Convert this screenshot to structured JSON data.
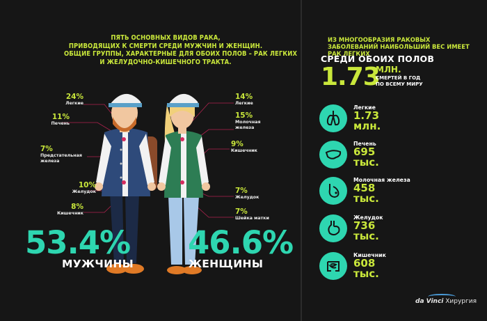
{
  "headline": [
    "ПЯТЬ ОСНОВНЫХ ВИДОВ РАКА,",
    "ПРИВОДЯЩИХ К СМЕРТИ СРЕДИ МУЖЧИН И ЖЕНЩИН.",
    "ОБЩИЕ ГРУППЫ, ХАРАКТЕРНЫЕ ДЛЯ ОБОИХ ПОЛОВ – РАК ЛЕГКИХ",
    "И ЖЕЛУДОЧНО-КИШЕЧНОГО ТРАКТА."
  ],
  "men": {
    "percent": "53.4%",
    "label": "МУЖЧИНЫ",
    "stats": [
      {
        "pct": "24%",
        "label": "Легкие"
      },
      {
        "pct": "11%",
        "label": "Печень"
      },
      {
        "pct": "7%",
        "label": "Предстательная железа"
      },
      {
        "pct": "10%",
        "label": "Желудок"
      },
      {
        "pct": "8%",
        "label": "Кишечник"
      }
    ]
  },
  "women": {
    "percent": "46.6%",
    "label": "ЖЕНЩИНЫ",
    "stats": [
      {
        "pct": "14%",
        "label": "Легкие"
      },
      {
        "pct": "15%",
        "label": "Молочная железа"
      },
      {
        "pct": "9%",
        "label": "Кишечник"
      },
      {
        "pct": "7%",
        "label": "Желудок"
      },
      {
        "pct": "7%",
        "label": "Шейка матки"
      }
    ]
  },
  "right": {
    "intro": "ИЗ МНОГООБРАЗИЯ РАКОВЫХ ЗАБОЛЕВАНИЙ НАИБОЛЬШИЙ ВЕС ИМЕЕТ РАК ЛЕГКИХ",
    "both_title": "СРЕДИ ОБОИХ ПОЛОВ",
    "total_number": "1.73",
    "total_unit": "МЛН.",
    "total_desc_1": "СМЕРТЕЙ В ГОД",
    "total_desc_2": "ПО ВСЕМУ МИРУ",
    "items": [
      {
        "name": "Легкие",
        "value_1": "1.73",
        "value_2": "млн.",
        "icon": "lungs-icon"
      },
      {
        "name": "Печень",
        "value_1": "695",
        "value_2": "тыс.",
        "icon": "liver-icon"
      },
      {
        "name": "Молочная железа",
        "value_1": "458",
        "value_2": "тыс.",
        "icon": "breast-icon"
      },
      {
        "name": "Желудок",
        "value_1": "736",
        "value_2": "тыс.",
        "icon": "stomach-icon"
      },
      {
        "name": "Кишечник",
        "value_1": "608",
        "value_2": "тыс.",
        "icon": "intestine-icon"
      }
    ]
  },
  "logo": {
    "brand": "da Vinci",
    "text": "Хирургия"
  },
  "colors": {
    "accent_lime": "#c9e73b",
    "accent_teal": "#2ed6b0",
    "background": "#161616",
    "pointer": "#b0234f"
  }
}
